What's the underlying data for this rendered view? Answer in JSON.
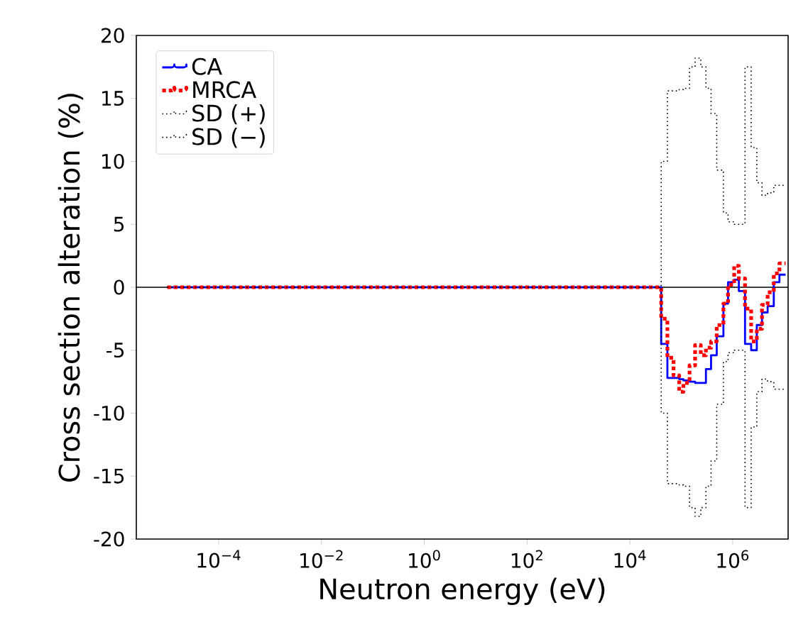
{
  "chart_data": {
    "type": "step",
    "xlabel": "Neutron energy (eV)",
    "ylabel": "Cross section alteration (%)",
    "x": [
      1e-05,
      40700.0,
      53700.0,
      70800.0,
      91200.0,
      110000.0,
      145000.0,
      186000.0,
      240000.0,
      302000.0,
      380000.0,
      490000.0,
      661000.0,
      813000.0,
      1070000.0,
      1320000.0,
      1740000.0,
      2290000.0,
      2950000.0,
      3720000.0,
      4790000.0,
      6310000.0,
      8130000.0,
      10700000.0
    ],
    "series": [
      {
        "name": "CA",
        "color": "#0000ff",
        "line_style": "solid",
        "values": [
          0,
          -4.5,
          -7.2,
          -7.2,
          -7.3,
          -7.4,
          -7.5,
          -7.6,
          -7.6,
          -6.5,
          -5.4,
          -3.9,
          -1.3,
          0.4,
          0.6,
          -0.3,
          -4.5,
          -5.0,
          -3.0,
          -2.0,
          -1.5,
          0.4,
          1.0,
          1.0
        ]
      },
      {
        "name": "MRCA",
        "color": "#ff0000",
        "line_style": "dotted",
        "values": [
          0,
          -2.5,
          -5.6,
          -7.0,
          -8.3,
          -7.6,
          -6.2,
          -4.6,
          -5.4,
          -4.8,
          -4.3,
          -3.0,
          -1.3,
          0.2,
          1.7,
          0.7,
          -1.7,
          -4.3,
          -3.3,
          -1.4,
          -0.4,
          1.1,
          1.9,
          1.9
        ]
      },
      {
        "name": "SD (+)",
        "color": "#000000",
        "line_style": "dotted",
        "values": [
          0,
          10.0,
          15.6,
          15.6,
          15.7,
          15.8,
          17.5,
          18.2,
          17.5,
          15.8,
          13.8,
          9.3,
          5.9,
          5.2,
          5.0,
          5.0,
          17.5,
          11.1,
          8.3,
          7.3,
          7.5,
          8.1,
          8.1,
          8.1
        ]
      },
      {
        "name": "SD (−)",
        "color": "#000000",
        "line_style": "dotted",
        "values": [
          0,
          -10.0,
          -15.6,
          -15.6,
          -15.7,
          -15.8,
          -17.5,
          -18.2,
          -17.5,
          -15.8,
          -13.8,
          -9.3,
          -5.9,
          -5.2,
          -5.0,
          -5.0,
          -17.5,
          -11.1,
          -8.3,
          -7.3,
          -7.5,
          -8.1,
          -8.1,
          -8.1
        ]
      }
    ],
    "log": "x",
    "xlim": [
      2.5e-06,
      12000000.0
    ],
    "xticks": [
      {
        "value": 0.0001,
        "label": "10$^{−4}$"
      },
      {
        "value": 0.01,
        "label": "10$^{−2}$"
      },
      {
        "value": 1,
        "label": "10$^{0}$"
      },
      {
        "value": 100,
        "label": "10$^{2}$"
      },
      {
        "value": 10000,
        "label": "10$^{4}$"
      },
      {
        "value": 1000000,
        "label": "10$^{6}$"
      }
    ],
    "ylim": [
      -20,
      20
    ],
    "yticks": [
      -20,
      -15,
      -10,
      -5,
      0,
      5,
      10,
      15,
      20
    ],
    "ref_lines": [
      {
        "axis": "y",
        "value": 0,
        "color": "#000000",
        "line_style": "solid"
      }
    ],
    "legend": "top left",
    "grid": false
  }
}
